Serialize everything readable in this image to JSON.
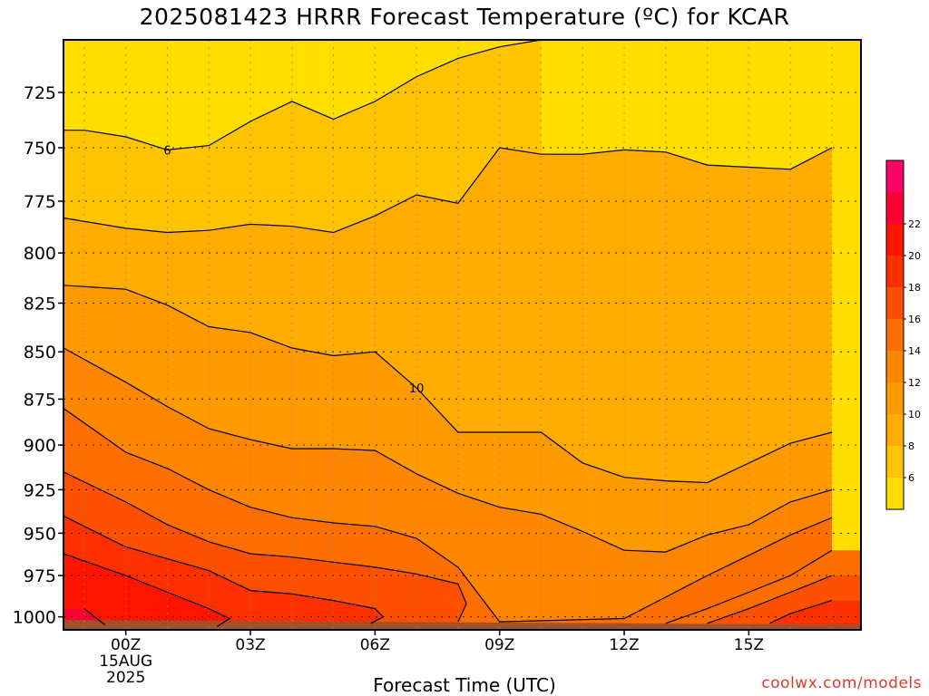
{
  "title": "2025081423 HRRR Forecast Temperature (ºC) for KCAR",
  "footer": {
    "xlabel": "Forecast Time (UTC)",
    "credit": "coolwx.com/models"
  },
  "chart_data": {
    "type": "heatmap",
    "title": "2025081423 HRRR Forecast Temperature (ºC) for KCAR",
    "xlabel": "Forecast Time (UTC)",
    "ylabel": "",
    "x_hours": [
      -1,
      0,
      1,
      2,
      3,
      4,
      5,
      6,
      7,
      8,
      9,
      10,
      11,
      12,
      13,
      14,
      15,
      16,
      17
    ],
    "xlim": [
      -1.5,
      17.7
    ],
    "x_ticks": [
      {
        "hour": 0,
        "label": "00Z",
        "sub": [
          "15AUG",
          "2025"
        ]
      },
      {
        "hour": 3,
        "label": "03Z",
        "sub": []
      },
      {
        "hour": 6,
        "label": "06Z",
        "sub": []
      },
      {
        "hour": 9,
        "label": "09Z",
        "sub": []
      },
      {
        "hour": 12,
        "label": "12Z",
        "sub": []
      },
      {
        "hour": 15,
        "label": "15Z",
        "sub": []
      }
    ],
    "y_levels": [
      1000,
      975,
      950,
      925,
      900,
      875,
      850,
      825,
      800,
      775,
      750,
      725
    ],
    "y_scale": "log",
    "ylim": [
      1008,
      702
    ],
    "grid": true,
    "temperature_contours_degC": [
      {
        "level": 6,
        "label": "6",
        "points": [
          [
            -1.5,
            742
          ],
          [
            -1,
            742
          ],
          [
            0,
            745
          ],
          [
            1,
            751
          ],
          [
            2,
            749
          ],
          [
            3,
            738
          ],
          [
            4,
            729
          ],
          [
            5,
            737
          ],
          [
            6,
            729
          ],
          [
            7,
            718
          ],
          [
            8,
            710
          ],
          [
            9,
            705
          ],
          [
            10,
            702
          ]
        ]
      },
      {
        "level": 8,
        "label": "",
        "points": [
          [
            -1.5,
            783
          ],
          [
            0,
            788
          ],
          [
            1,
            790
          ],
          [
            2,
            789
          ],
          [
            3,
            786
          ],
          [
            4,
            787
          ],
          [
            5,
            790
          ],
          [
            6,
            782
          ],
          [
            7,
            772
          ],
          [
            8,
            776
          ],
          [
            9,
            750
          ],
          [
            10,
            753
          ],
          [
            11,
            753
          ],
          [
            12,
            751
          ],
          [
            13,
            752
          ],
          [
            14,
            758
          ],
          [
            15,
            759
          ],
          [
            16,
            760
          ],
          [
            17,
            750
          ]
        ]
      },
      {
        "level": 10,
        "label": "10",
        "points": [
          [
            -1.5,
            816
          ],
          [
            0,
            818
          ],
          [
            1,
            826
          ],
          [
            2,
            837
          ],
          [
            3,
            840
          ],
          [
            4,
            848
          ],
          [
            5,
            852
          ],
          [
            6,
            850
          ],
          [
            7,
            869
          ],
          [
            8,
            893
          ],
          [
            9,
            893
          ],
          [
            10,
            893
          ],
          [
            11,
            910
          ],
          [
            12,
            918
          ],
          [
            13,
            920
          ],
          [
            14,
            921
          ],
          [
            15,
            910
          ],
          [
            16,
            899
          ],
          [
            17,
            893
          ]
        ]
      },
      {
        "level": 12,
        "label": "",
        "points": [
          [
            -1.5,
            848
          ],
          [
            0,
            866
          ],
          [
            1,
            879
          ],
          [
            2,
            891
          ],
          [
            3,
            897
          ],
          [
            4,
            902
          ],
          [
            5,
            902
          ],
          [
            6,
            903
          ],
          [
            7,
            916
          ],
          [
            8,
            927
          ],
          [
            9,
            935
          ],
          [
            10,
            939
          ],
          [
            11,
            949
          ],
          [
            12,
            960
          ],
          [
            13,
            961
          ],
          [
            14,
            951
          ],
          [
            15,
            945
          ],
          [
            16,
            932
          ],
          [
            17,
            925
          ]
        ]
      },
      {
        "level": 14,
        "label": "",
        "points": [
          [
            -1.5,
            880
          ],
          [
            0,
            904
          ],
          [
            1,
            913
          ],
          [
            2,
            925
          ],
          [
            3,
            935
          ],
          [
            4,
            941
          ],
          [
            5,
            944
          ],
          [
            6,
            946
          ],
          [
            7,
            953
          ],
          [
            8,
            970
          ],
          [
            9,
            1003
          ],
          [
            12,
            1001
          ],
          [
            13,
            988
          ],
          [
            14,
            975
          ],
          [
            15,
            963
          ],
          [
            16,
            951
          ],
          [
            17,
            941
          ]
        ]
      },
      {
        "level": 16,
        "label": "",
        "points": [
          [
            -1.5,
            915
          ],
          [
            0,
            932
          ],
          [
            1,
            945
          ],
          [
            2,
            955
          ],
          [
            3,
            962
          ],
          [
            4,
            964
          ],
          [
            5,
            967
          ],
          [
            6,
            970
          ],
          [
            7,
            974
          ],
          [
            8,
            980
          ],
          [
            8.2,
            992
          ],
          [
            8,
            1003
          ]
        ]
      },
      {
        "level": 18,
        "label": "",
        "points": [
          [
            -1.5,
            940
          ],
          [
            0,
            958
          ],
          [
            1,
            965
          ],
          [
            2,
            972
          ],
          [
            3,
            984
          ],
          [
            4,
            986
          ],
          [
            5,
            990
          ],
          [
            6,
            995
          ],
          [
            6.2,
            1000
          ],
          [
            5.9,
            1004
          ]
        ]
      },
      {
        "level": 20,
        "label": "",
        "points": [
          [
            -1.5,
            962
          ],
          [
            0,
            975
          ],
          [
            1,
            985
          ],
          [
            2,
            995
          ],
          [
            2.5,
            1001
          ],
          [
            2.2,
            1006
          ]
        ]
      },
      {
        "level": 22,
        "label": "",
        "points": [
          [
            -1,
            995
          ],
          [
            -0.5,
            1005
          ]
        ]
      }
    ],
    "right_side_contours_degC": [
      {
        "level": 14,
        "points": [
          [
            17,
            960
          ],
          [
            16,
            975
          ],
          [
            15,
            985
          ],
          [
            14,
            995
          ],
          [
            13,
            1004
          ]
        ]
      },
      {
        "level": 16,
        "points": [
          [
            17,
            975
          ],
          [
            16,
            985
          ],
          [
            15,
            995
          ],
          [
            14,
            1004
          ]
        ]
      },
      {
        "level": 18,
        "points": [
          [
            17,
            990
          ],
          [
            16,
            998
          ],
          [
            15.5,
            1004
          ]
        ]
      }
    ],
    "colorbar": {
      "ticks": [
        "6",
        "8",
        "10",
        "12",
        "14",
        "16",
        "18",
        "20",
        "22"
      ],
      "colors": [
        "#ffde00",
        "#ffc400",
        "#ffac00",
        "#ff9a00",
        "#ff8600",
        "#ff6e00",
        "#ff5000",
        "#ff3000",
        "#ff1400",
        "#ff0032",
        "#ff0066"
      ],
      "color_bounds": [
        4,
        6,
        8,
        10,
        12,
        14,
        16,
        18,
        20,
        22,
        24
      ]
    },
    "ground_color": "#a0522d",
    "line_color": "#000000"
  }
}
